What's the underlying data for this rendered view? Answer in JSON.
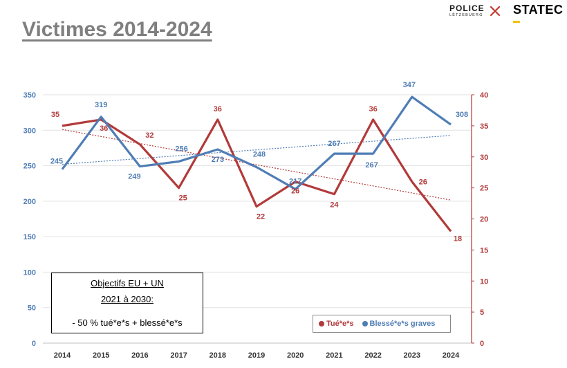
{
  "slide": {
    "title": "Victimes 2014-2024"
  },
  "logos": {
    "police_name": "POLICE",
    "police_sub": "LËTZEBUERG",
    "statec_name": "STATEC"
  },
  "objectives": {
    "line1": "Objectifs EU + UN",
    "line2": "2021 à 2030:",
    "line3": "- 50 % tué*e*s + blessé*e*s"
  },
  "colors": {
    "killed": "#b23a3a",
    "injured": "#4f7db5",
    "grid": "#e2e2e2"
  },
  "chart_data": {
    "type": "line",
    "title": "Victimes 2014-2024",
    "categories": [
      "2014",
      "2015",
      "2016",
      "2017",
      "2018",
      "2019",
      "2020",
      "2021",
      "2022",
      "2023",
      "2024"
    ],
    "series": [
      {
        "name": "Blessé*e*s graves",
        "axis": "left",
        "values": [
          245,
          319,
          249,
          256,
          273,
          248,
          217,
          267,
          267,
          347,
          308
        ],
        "labels": [
          "245",
          "319",
          "249",
          "256",
          "273",
          "248",
          "217",
          "267",
          "267",
          "347",
          "308"
        ],
        "trendline": "linear"
      },
      {
        "name": "Tué*e*s",
        "axis": "right",
        "values": [
          35,
          36,
          32,
          25,
          36,
          22,
          26,
          24,
          36,
          26,
          18
        ],
        "labels": [
          "35",
          "36",
          "32",
          "25",
          "36",
          "22",
          "26",
          "24",
          "36",
          "26",
          "18"
        ],
        "trendline": "linear"
      }
    ],
    "y_left": {
      "min": 0,
      "max": 350,
      "ticks": [
        "0",
        "50",
        "100",
        "150",
        "200",
        "250",
        "300",
        "350"
      ]
    },
    "y_right": {
      "min": 0,
      "max": 40,
      "ticks": [
        "0",
        "5",
        "10",
        "15",
        "20",
        "25",
        "30",
        "35",
        "40"
      ]
    },
    "legend": [
      "Tué*e*s",
      "Blessé*e*s graves"
    ],
    "legend_position": "bottom-right",
    "grid": true
  }
}
